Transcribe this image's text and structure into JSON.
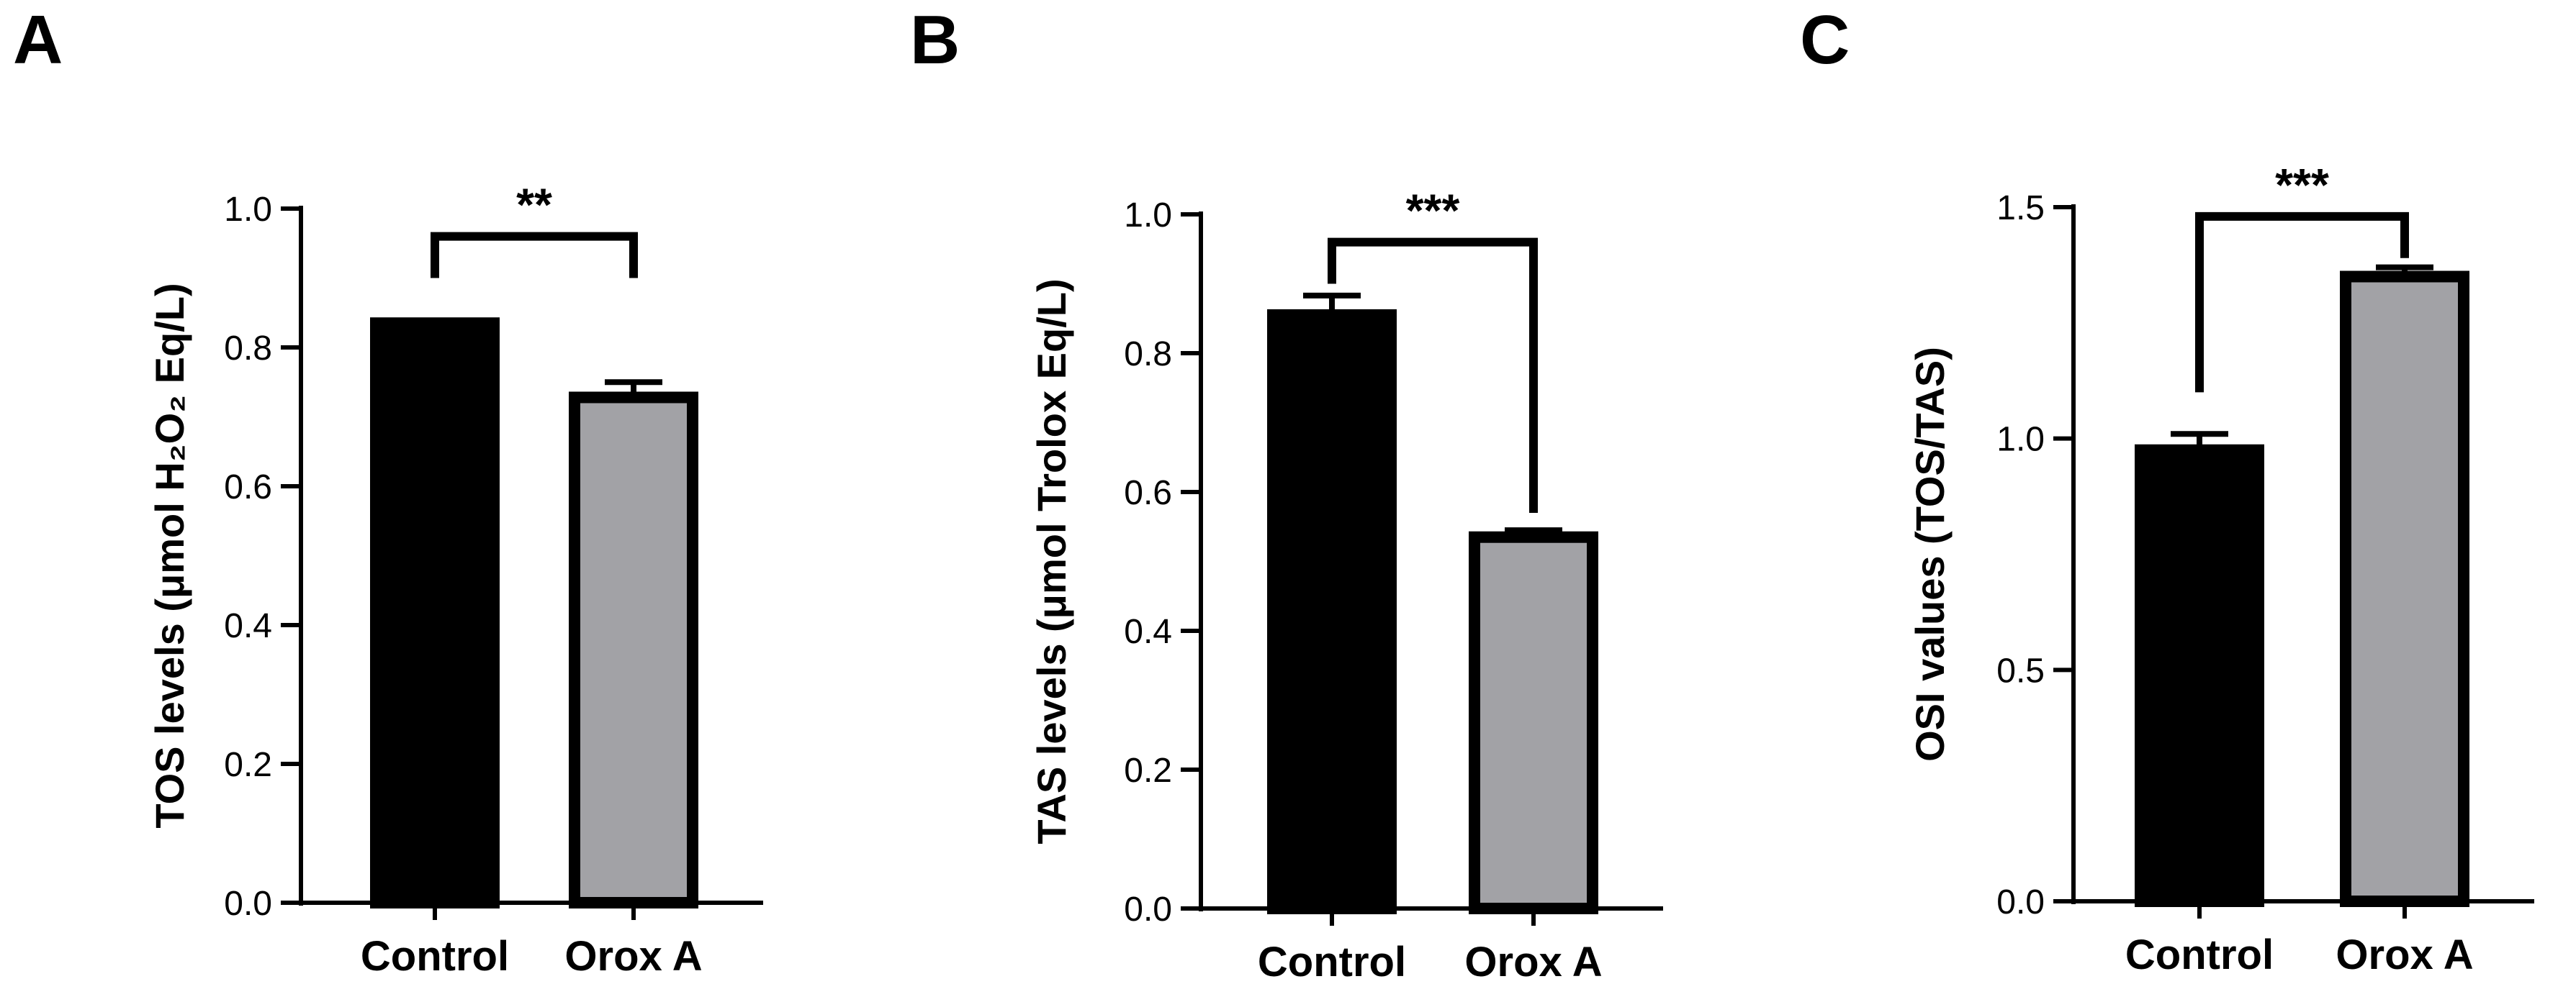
{
  "panels": [
    {
      "letter": "A"
    },
    {
      "letter": "B"
    },
    {
      "letter": "C"
    }
  ],
  "chart_data": [
    {
      "type": "bar",
      "panel": "A",
      "categories": [
        "Control",
        "Orox A"
      ],
      "values": [
        0.835,
        0.728
      ],
      "errors": [
        0.003,
        0.022
      ],
      "bar_colors": [
        "#000000",
        "#a2a2a6"
      ],
      "ylabel": "TOS levels (μmol H₂O₂ Eq/L)",
      "ylim": [
        0,
        1.0
      ],
      "yticks": [
        0.0,
        0.2,
        0.4,
        0.6,
        0.8,
        1.0
      ],
      "tick_labels": [
        "0.0",
        "0.2",
        "0.4",
        "0.6",
        "0.8",
        "1.0"
      ],
      "significance": "**",
      "bracket_levels": [
        0.9,
        0.9
      ]
    },
    {
      "type": "bar",
      "panel": "B",
      "categories": [
        "Control",
        "Orox A"
      ],
      "values": [
        0.855,
        0.535
      ],
      "errors": [
        0.028,
        0.01
      ],
      "bar_colors": [
        "#000000",
        "#a2a2a6"
      ],
      "ylabel": "TAS levels (μmol Trolox Eq/L)",
      "ylim": [
        0,
        1.0
      ],
      "yticks": [
        0.0,
        0.2,
        0.4,
        0.6,
        0.8,
        1.0
      ],
      "tick_labels": [
        "0.0",
        "0.2",
        "0.4",
        "0.6",
        "0.8",
        "1.0"
      ],
      "significance": "***",
      "bracket_levels": [
        0.9,
        0.57
      ]
    },
    {
      "type": "bar",
      "panel": "C",
      "categories": [
        "Control",
        "Orox A"
      ],
      "values": [
        0.975,
        1.35
      ],
      "errors": [
        0.035,
        0.02
      ],
      "bar_colors": [
        "#000000",
        "#a2a2a6"
      ],
      "ylabel": "OSI values (TOS/TAS)",
      "ylim": [
        0,
        1.5
      ],
      "yticks": [
        0.0,
        0.5,
        1.0,
        1.5
      ],
      "tick_labels": [
        "0.0",
        "0.5",
        "1.0",
        "1.5"
      ],
      "significance": "***",
      "bracket_levels": [
        1.1,
        1.39
      ]
    }
  ]
}
